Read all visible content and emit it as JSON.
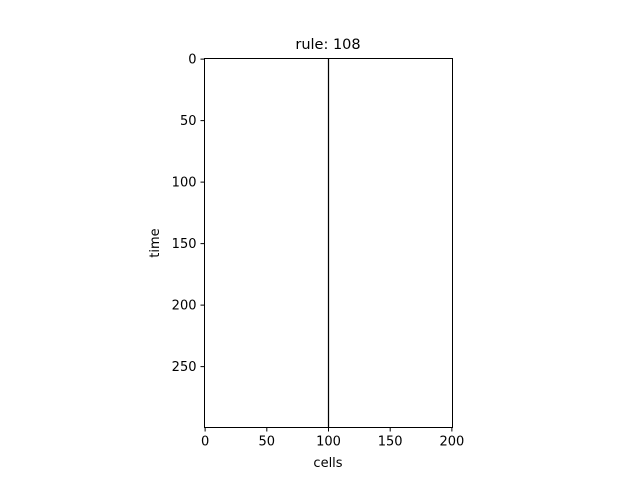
{
  "chart_data": {
    "type": "heatmap",
    "title": "rule: 108",
    "xlabel": "cells",
    "ylabel": "time",
    "xlim": [
      -0.5,
      200.5
    ],
    "ylim": [
      299.5,
      -0.5
    ],
    "xticks": [
      0,
      50,
      100,
      150,
      200
    ],
    "yticks": [
      0,
      50,
      100,
      150,
      200,
      250
    ],
    "xtick_labels": [
      "0",
      "50",
      "100",
      "150",
      "200"
    ],
    "ytick_labels": [
      "0",
      "50",
      "100",
      "150",
      "200",
      "250"
    ],
    "grid": false,
    "width": 201,
    "steps": 300,
    "active_cells": [
      100
    ],
    "colors": {
      "on": "#000000",
      "off": "#ffffff"
    }
  }
}
